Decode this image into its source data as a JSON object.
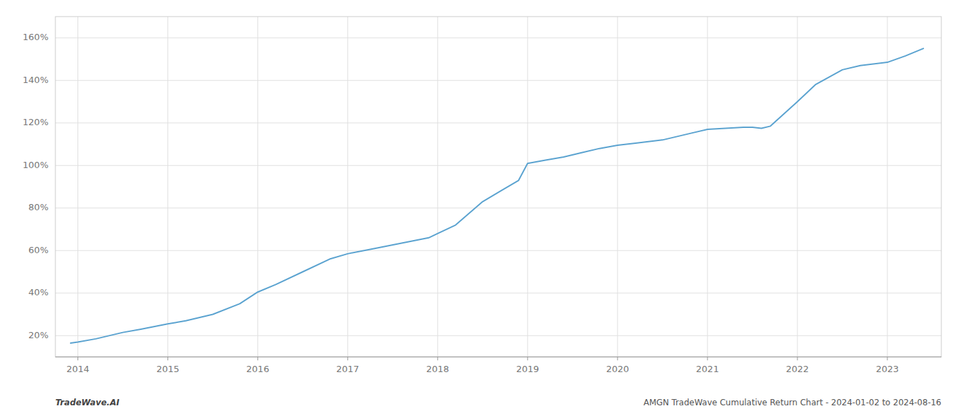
{
  "chart_data": {
    "type": "line",
    "x": [
      2013.92,
      2014.0,
      2014.2,
      2014.5,
      2014.7,
      2015.0,
      2015.2,
      2015.5,
      2015.8,
      2016.0,
      2016.2,
      2016.5,
      2016.8,
      2017.0,
      2017.3,
      2017.6,
      2017.9,
      2018.0,
      2018.2,
      2018.5,
      2018.7,
      2018.9,
      2019.0,
      2019.2,
      2019.4,
      2019.6,
      2019.8,
      2020.0,
      2020.2,
      2020.5,
      2020.8,
      2021.0,
      2021.2,
      2021.4,
      2021.5,
      2021.6,
      2021.7,
      2022.0,
      2022.2,
      2022.5,
      2022.7,
      2023.0,
      2023.2,
      2023.4
    ],
    "values": [
      16.5,
      17.0,
      18.5,
      21.5,
      23.0,
      25.5,
      27.0,
      30.0,
      35.0,
      40.5,
      44.0,
      50.0,
      56.0,
      58.5,
      61.0,
      63.5,
      66.0,
      68.0,
      72.0,
      83.0,
      88.0,
      93.0,
      101.0,
      102.5,
      104.0,
      106.0,
      108.0,
      109.5,
      110.5,
      112.0,
      115.0,
      117.0,
      117.5,
      118.0,
      118.0,
      117.5,
      118.5,
      130.0,
      138.0,
      145.0,
      147.0,
      148.5,
      151.5,
      155.0
    ],
    "color": "#5ba3d0",
    "xlim": [
      2013.75,
      2023.6
    ],
    "xticks": [
      2014,
      2015,
      2016,
      2017,
      2018,
      2019,
      2020,
      2021,
      2022,
      2023
    ],
    "ylim": [
      10,
      170
    ],
    "yticks": [
      {
        "value": 20,
        "label": "20%"
      },
      {
        "value": 40,
        "label": "40%"
      },
      {
        "value": 60,
        "label": "60%"
      },
      {
        "value": 80,
        "label": "80%"
      },
      {
        "value": 100,
        "label": "100%"
      },
      {
        "value": 120,
        "label": "120%"
      },
      {
        "value": 140,
        "label": "140%"
      },
      {
        "value": 160,
        "label": "160%"
      }
    ],
    "grid": true,
    "annotations": [
      "TradeWave.AI",
      "AMGN TradeWave Cumulative Return Chart - 2024-01-02 to 2024-08-16"
    ]
  }
}
